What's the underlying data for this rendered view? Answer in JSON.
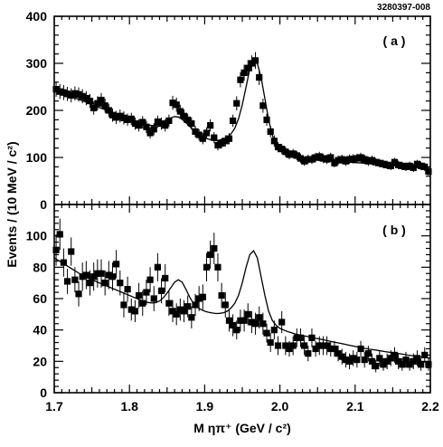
{
  "figure_id": "3280397-008",
  "chart_data": {
    "type": "scatter",
    "y_axis_title": "Events / (10 MeV / c²)",
    "x_axis_title": "M ηπ⁺ (GeV / c²)",
    "x_ticks": [
      "1.7",
      "1.8",
      "1.9",
      "2.0",
      "2.1",
      "2.2"
    ],
    "xlim": [
      1.7,
      2.2
    ],
    "panels": [
      {
        "label": "( a )",
        "ylim": [
          0,
          400
        ],
        "y_ticks": [
          "0",
          "100",
          "200",
          "300",
          "400"
        ],
        "series": [
          {
            "kind": "data-points-with-error-bars",
            "x": [
              1.7025,
              1.7075,
              1.7125,
              1.7175,
              1.7225,
              1.7275,
              1.7325,
              1.7375,
              1.7425,
              1.7475,
              1.7525,
              1.7575,
              1.7625,
              1.7675,
              1.7725,
              1.7775,
              1.7825,
              1.7875,
              1.7925,
              1.7975,
              1.8025,
              1.8075,
              1.8125,
              1.8175,
              1.8225,
              1.8275,
              1.8325,
              1.8375,
              1.8425,
              1.8475,
              1.8525,
              1.8575,
              1.8625,
              1.8675,
              1.8725,
              1.8775,
              1.8825,
              1.8875,
              1.8925,
              1.8975,
              1.9025,
              1.9075,
              1.9125,
              1.9175,
              1.9225,
              1.9275,
              1.9325,
              1.9375,
              1.9425,
              1.9475,
              1.9525,
              1.9575,
              1.9625,
              1.9675,
              1.9725,
              1.9775,
              1.9825,
              1.9875,
              1.9925,
              1.9975,
              2.0025,
              2.0075,
              2.0125,
              2.0175,
              2.0225,
              2.0275,
              2.0325,
              2.0375,
              2.0425,
              2.0475,
              2.0525,
              2.0575,
              2.0625,
              2.0675,
              2.0725,
              2.0775,
              2.0825,
              2.0875,
              2.0925,
              2.0975,
              2.1025,
              2.1075,
              2.1125,
              2.1175,
              2.1225,
              2.1275,
              2.1325,
              2.1375,
              2.1425,
              2.1475,
              2.1525,
              2.1575,
              2.1625,
              2.1675,
              2.1725,
              2.1775,
              2.1825,
              2.1875,
              2.1925,
              2.1975
            ],
            "y": [
              245,
              240,
              238,
              235,
              232,
              236,
              234,
              230,
              226,
              220,
              205,
              215,
              222,
              210,
              200,
              190,
              185,
              188,
              184,
              180,
              182,
              172,
              168,
              175,
              165,
              152,
              160,
              176,
              172,
              168,
              178,
              216,
              212,
              198,
              188,
              180,
              172,
              155,
              148,
              140,
              152,
              168,
              142,
              126,
              130,
              135,
              140,
              178,
              215,
              265,
              280,
              290,
              300,
              306,
              270,
              210,
              180,
              155,
              135,
              122,
              118,
              112,
              106,
              108,
              104,
              98,
              92,
              96,
              96,
              100,
              102,
              98,
              96,
              100,
              88,
              94,
              96,
              92,
              96,
              97,
              98,
              100,
              96,
              92,
              94,
              90,
              88,
              86,
              84,
              82,
              90,
              84,
              82,
              80,
              82,
              78,
              86,
              82,
              80,
              70
            ],
            "yerr": [
              16,
              16,
              16,
              15,
              15,
              15,
              15,
              15,
              15,
              15,
              14,
              15,
              15,
              15,
              14,
              14,
              14,
              14,
              14,
              13,
              13,
              13,
              13,
              13,
              13,
              12,
              13,
              13,
              13,
              13,
              13,
              15,
              15,
              14,
              14,
              13,
              13,
              12,
              12,
              12,
              12,
              13,
              12,
              11,
              11,
              12,
              12,
              13,
              15,
              16,
              17,
              17,
              17,
              18,
              16,
              15,
              13,
              12,
              12,
              11,
              11,
              11,
              10,
              10,
              10,
              10,
              10,
              10,
              10,
              10,
              10,
              10,
              10,
              10,
              9,
              10,
              10,
              10,
              10,
              10,
              10,
              10,
              10,
              10,
              10,
              9,
              9,
              9,
              9,
              9,
              9,
              9,
              9,
              9,
              9,
              9,
              9,
              9,
              9,
              8
            ]
          },
          {
            "kind": "fit-curve",
            "x": [
              1.7,
              1.705,
              1.71,
              1.715,
              1.72,
              1.725,
              1.73,
              1.735,
              1.74,
              1.745,
              1.75,
              1.755,
              1.76,
              1.765,
              1.77,
              1.775,
              1.78,
              1.785,
              1.79,
              1.795,
              1.8,
              1.805,
              1.81,
              1.815,
              1.82,
              1.825,
              1.83,
              1.835,
              1.84,
              1.845,
              1.85,
              1.855,
              1.86,
              1.865,
              1.87,
              1.875,
              1.88,
              1.885,
              1.89,
              1.895,
              1.9,
              1.905,
              1.91,
              1.915,
              1.92,
              1.925,
              1.93,
              1.935,
              1.94,
              1.945,
              1.95,
              1.955,
              1.96,
              1.965,
              1.97,
              1.975,
              1.98,
              1.985,
              1.99,
              1.995,
              2.0,
              2.005,
              2.01,
              2.015,
              2.02,
              2.03,
              2.04,
              2.05,
              2.06,
              2.07,
              2.08,
              2.09,
              2.1,
              2.11,
              2.12,
              2.13,
              2.14,
              2.15,
              2.16,
              2.17,
              2.18,
              2.19,
              2.2
            ],
            "y": [
              243,
              240,
              237,
              234,
              231,
              228,
              225,
              222,
              219,
              216,
              212,
              209,
              206,
              203,
              200,
              197,
              194,
              191,
              188,
              185,
              182,
              179,
              176,
              173,
              171,
              169,
              168,
              168,
              170,
              174,
              179,
              184,
              187,
              186,
              181,
              174,
              166,
              158,
              151,
              146,
              142,
              139,
              137,
              136,
              137,
              139,
              143,
              150,
              162,
              182,
              212,
              250,
              288,
              304,
              300,
              270,
              225,
              180,
              147,
              126,
              116,
              110,
              106,
              103,
              101,
              98,
              96,
              94,
              93,
              92,
              91,
              90,
              89,
              88,
              87,
              86,
              85,
              84,
              83,
              82,
              81,
              80,
              79
            ]
          }
        ]
      },
      {
        "label": "( b )",
        "ylim": [
          0,
          120
        ],
        "y_ticks": [
          "0",
          "20",
          "40",
          "60",
          "80",
          "100"
        ],
        "series": [
          {
            "kind": "data-points-with-error-bars",
            "x": [
              1.7025,
              1.7075,
              1.7125,
              1.7175,
              1.7225,
              1.7275,
              1.7325,
              1.7375,
              1.7425,
              1.7475,
              1.7525,
              1.7575,
              1.7625,
              1.7675,
              1.7725,
              1.7775,
              1.7825,
              1.7875,
              1.7925,
              1.7975,
              1.8025,
              1.8075,
              1.8125,
              1.8175,
              1.8225,
              1.8275,
              1.8325,
              1.8375,
              1.8425,
              1.8475,
              1.8525,
              1.8575,
              1.8625,
              1.8675,
              1.8725,
              1.8775,
              1.8825,
              1.8875,
              1.8925,
              1.8975,
              1.9025,
              1.9075,
              1.9125,
              1.9175,
              1.9225,
              1.9275,
              1.9325,
              1.9375,
              1.9425,
              1.9475,
              1.9525,
              1.9575,
              1.9625,
              1.9675,
              1.9725,
              1.9775,
              1.9825,
              1.9875,
              1.9925,
              1.9975,
              2.0025,
              2.0075,
              2.0125,
              2.0175,
              2.0225,
              2.0275,
              2.0325,
              2.0375,
              2.0425,
              2.0475,
              2.0525,
              2.0575,
              2.0625,
              2.0675,
              2.0725,
              2.0775,
              2.0825,
              2.0875,
              2.0925,
              2.0975,
              2.1025,
              2.1075,
              2.1125,
              2.1175,
              2.1225,
              2.1275,
              2.1325,
              2.1375,
              2.1425,
              2.1475,
              2.1525,
              2.1575,
              2.1625,
              2.1675,
              2.1725,
              2.1775,
              2.1825,
              2.1875,
              2.1925,
              2.1975
            ],
            "y": [
              91,
              101,
              83,
              71,
              90,
              72,
              63,
              74,
              75,
              70,
              74,
              76,
              76,
              70,
              75,
              74,
              82,
              70,
              56,
              66,
              53,
              52,
              62,
              57,
              64,
              72,
              60,
              80,
              65,
              73,
              57,
              52,
              50,
              53,
              52,
              55,
              48,
              56,
              60,
              61,
              80,
              88,
              92,
              80,
              62,
              56,
              46,
              43,
              40,
              46,
              46,
              50,
              45,
              44,
              48,
              44,
              38,
              32,
              40,
              30,
              45,
              30,
              28,
              30,
              35,
              35,
              30,
              25,
              35,
              28,
              30,
              30,
              30,
              28,
              28,
              25,
              23,
              21,
              20,
              22,
              21,
              28,
              21,
              25,
              20,
              17,
              22,
              18,
              20,
              22,
              24,
              20,
              18,
              21,
              18,
              20,
              22,
              18,
              24,
              18
            ],
            "yerr": [
              10,
              10,
              9,
              8,
              9,
              8,
              8,
              9,
              9,
              8,
              9,
              9,
              9,
              8,
              9,
              9,
              9,
              8,
              8,
              8,
              7,
              7,
              8,
              8,
              8,
              8,
              8,
              9,
              8,
              9,
              8,
              7,
              7,
              7,
              7,
              7,
              7,
              7,
              8,
              8,
              9,
              9,
              10,
              9,
              8,
              8,
              7,
              7,
              6,
              7,
              7,
              7,
              7,
              7,
              7,
              7,
              6,
              6,
              6,
              6,
              7,
              6,
              5,
              6,
              6,
              6,
              6,
              5,
              6,
              5,
              6,
              6,
              6,
              5,
              5,
              5,
              5,
              5,
              5,
              5,
              5,
              5,
              5,
              5,
              5,
              4,
              5,
              4,
              5,
              5,
              5,
              5,
              4,
              5,
              4,
              5,
              5,
              4,
              5,
              4
            ]
          },
          {
            "kind": "fit-curve",
            "x": [
              1.7,
              1.705,
              1.71,
              1.715,
              1.72,
              1.725,
              1.73,
              1.735,
              1.74,
              1.745,
              1.75,
              1.755,
              1.76,
              1.765,
              1.77,
              1.775,
              1.78,
              1.785,
              1.79,
              1.795,
              1.8,
              1.805,
              1.81,
              1.815,
              1.82,
              1.825,
              1.83,
              1.835,
              1.84,
              1.845,
              1.85,
              1.855,
              1.86,
              1.865,
              1.87,
              1.875,
              1.88,
              1.885,
              1.89,
              1.895,
              1.9,
              1.905,
              1.91,
              1.915,
              1.92,
              1.925,
              1.93,
              1.935,
              1.94,
              1.945,
              1.95,
              1.955,
              1.96,
              1.965,
              1.97,
              1.975,
              1.98,
              1.985,
              1.99,
              1.995,
              2.0,
              2.005,
              2.01,
              2.015,
              2.02,
              2.03,
              2.04,
              2.05,
              2.06,
              2.07,
              2.08,
              2.09,
              2.1,
              2.11,
              2.12,
              2.13,
              2.14,
              2.15,
              2.16,
              2.17,
              2.18,
              2.19,
              2.2
            ],
            "y": [
              86,
              84.5,
              83,
              81.5,
              80,
              78.5,
              77,
              75.5,
              74,
              73,
              72,
              71,
              70,
              69,
              68,
              67,
              66,
              65,
              64,
              63,
              62,
              61,
              60,
              59,
              58,
              57.5,
              57.2,
              57.4,
              58.5,
              60.5,
              63.5,
              67,
              70.5,
              72,
              70.5,
              66,
              61,
              57,
              54.5,
              53,
              52,
              51.3,
              50.8,
              50.5,
              50.6,
              51,
              52,
              54,
              57,
              62,
              70,
              80,
              88,
              90.5,
              86,
              74,
              62,
              52,
              46,
              43,
              41,
              40,
              39,
              38.3,
              37.5,
              36.5,
              35.5,
              34.5,
              33.5,
              32.5,
              31.5,
              30.5,
              29.5,
              28.5,
              27.7,
              27,
              26.2,
              25.5,
              24.8,
              24,
              23.3,
              22.6,
              22
            ]
          }
        ]
      }
    ]
  }
}
